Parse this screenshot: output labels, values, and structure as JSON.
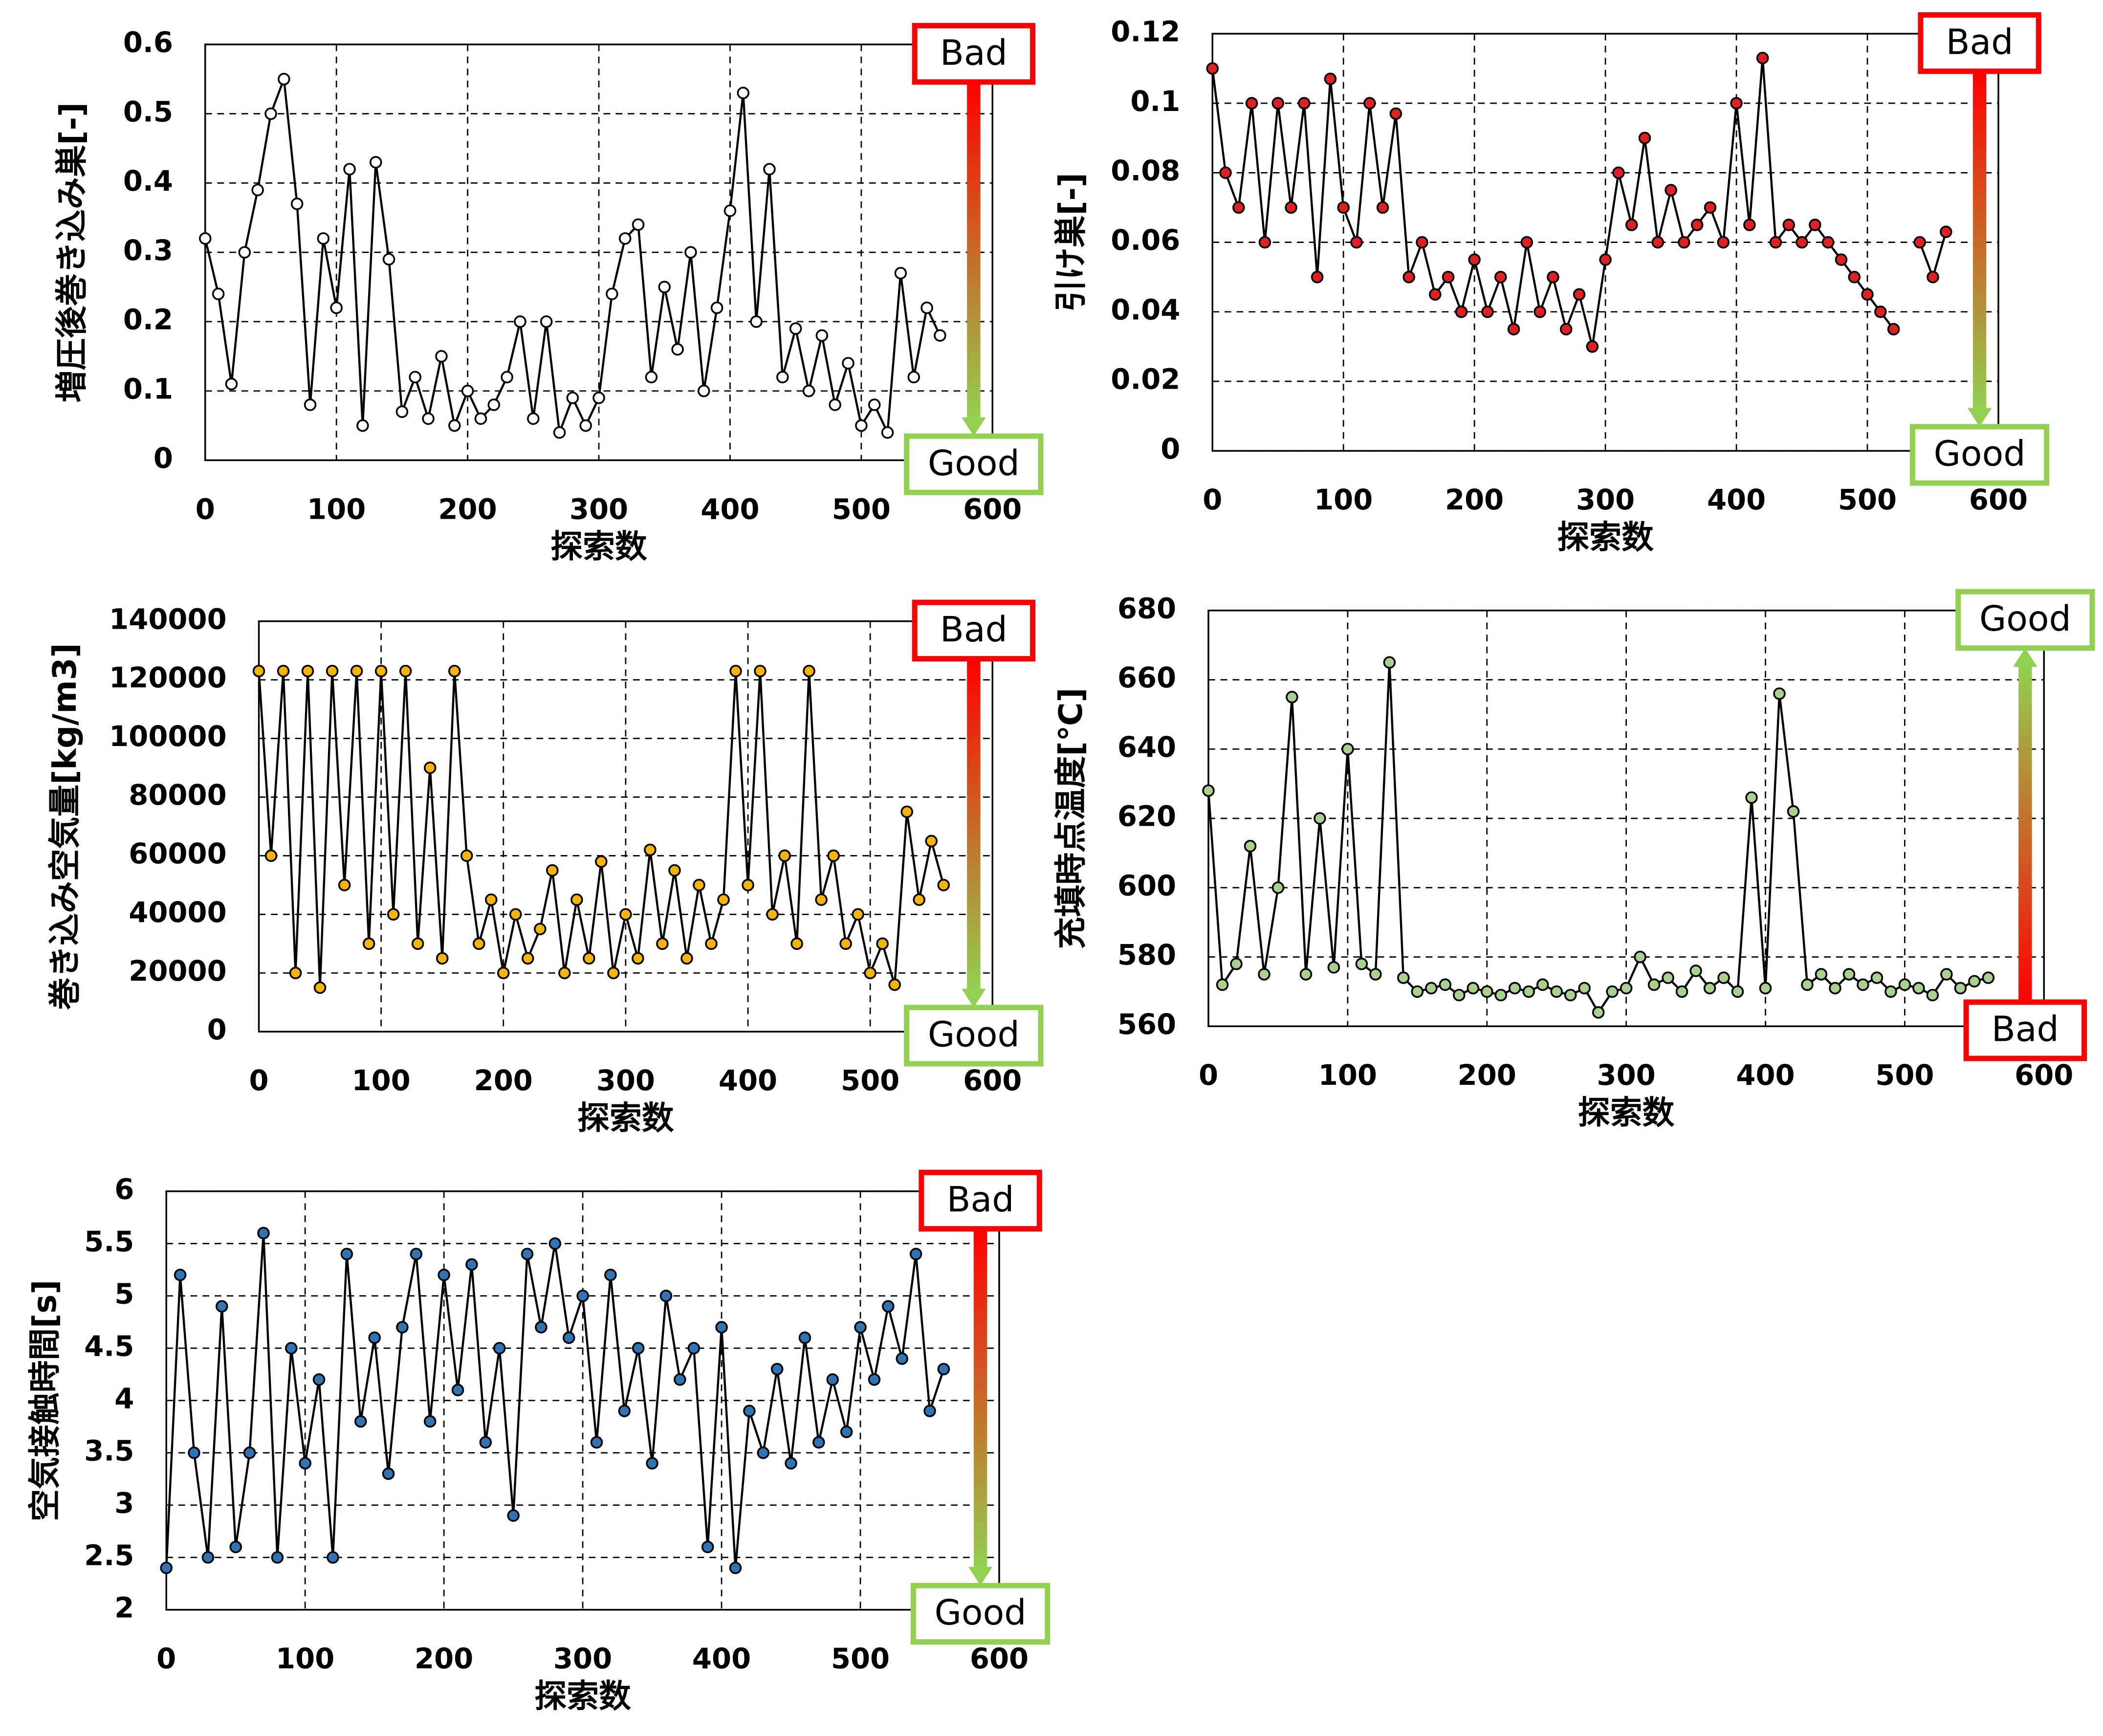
{
  "chart_data": [
    {
      "type": "line",
      "ylabel": "増圧後巻き込み巣[-]",
      "xlabel": "探索数",
      "x": [
        0,
        10,
        20,
        30,
        40,
        50,
        60,
        70,
        80,
        90,
        100,
        110,
        120,
        130,
        140,
        150,
        160,
        170,
        180,
        190,
        200,
        210,
        220,
        230,
        240,
        250,
        260,
        270,
        280,
        290,
        300,
        310,
        320,
        330,
        340,
        350,
        360,
        370,
        380,
        390,
        400,
        410,
        420,
        430,
        440,
        450,
        460,
        470,
        480,
        490,
        500,
        510,
        520,
        530,
        540,
        550,
        560
      ],
      "series": [
        {
          "color": "#ffffff",
          "values": [
            0.32,
            0.24,
            0.11,
            0.3,
            0.39,
            0.5,
            0.55,
            0.37,
            0.08,
            0.32,
            0.22,
            0.42,
            0.05,
            0.43,
            0.29,
            0.07,
            0.12,
            0.06,
            0.15,
            0.05,
            0.1,
            0.06,
            0.08,
            0.12,
            0.2,
            0.06,
            0.2,
            0.04,
            0.09,
            0.05,
            0.09,
            0.24,
            0.32,
            0.34,
            0.12,
            0.25,
            0.16,
            0.3,
            0.1,
            0.22,
            0.36,
            0.53,
            0.2,
            0.42,
            0.12,
            0.19,
            0.1,
            0.18,
            0.08,
            0.14,
            0.05,
            0.08,
            0.04,
            0.27,
            0.12,
            0.22,
            0.18
          ]
        }
      ],
      "xlim": [
        0,
        600
      ],
      "xticks": [
        0,
        100,
        200,
        300,
        400,
        500,
        600
      ],
      "ylim": [
        0,
        0.6
      ],
      "yticks": [
        0,
        0.1,
        0.2,
        0.3,
        0.4,
        0.5,
        0.6
      ],
      "grid": true,
      "arrow": {
        "from": "Bad",
        "to": "Good",
        "direction": "down",
        "from_color": "#ff0000",
        "to_color": "#92d050"
      }
    },
    {
      "type": "line",
      "ylabel": "引け巣[-]",
      "xlabel": "探索数",
      "x": [
        0,
        10,
        20,
        30,
        40,
        50,
        60,
        70,
        80,
        90,
        100,
        110,
        120,
        130,
        140,
        150,
        160,
        170,
        180,
        190,
        200,
        210,
        220,
        230,
        240,
        250,
        260,
        270,
        280,
        290,
        300,
        310,
        320,
        330,
        340,
        350,
        360,
        370,
        380,
        390,
        400,
        410,
        420,
        430,
        440,
        450,
        460,
        470,
        480,
        490,
        500,
        510,
        520,
        530,
        540,
        550,
        560
      ],
      "series": [
        {
          "color": "#e02020",
          "values": [
            0.11,
            0.08,
            0.07,
            0.1,
            0.06,
            0.1,
            0.07,
            0.1,
            0.05,
            0.107,
            0.07,
            0.06,
            0.1,
            0.07,
            0.097,
            0.05,
            0.06,
            0.045,
            0.05,
            0.04,
            0.055,
            0.04,
            0.05,
            0.035,
            0.06,
            0.04,
            0.05,
            0.035,
            0.045,
            0.03,
            0.055,
            0.08,
            0.065,
            0.09,
            0.06,
            0.075,
            0.06,
            0.065,
            0.07,
            0.06,
            0.1,
            0.065,
            0.113,
            0.06,
            0.065,
            0.06,
            0.065,
            0.06,
            0.055,
            0.05,
            0.045,
            0.04,
            0.035,
            null,
            0.06,
            0.05,
            0.063
          ]
        }
      ],
      "xlim": [
        0,
        600
      ],
      "xticks": [
        0,
        100,
        200,
        300,
        400,
        500,
        600
      ],
      "ylim": [
        0,
        0.12
      ],
      "yticks": [
        0,
        0.02,
        0.04,
        0.06,
        0.08,
        0.1,
        0.12
      ],
      "grid": true,
      "arrow": {
        "from": "Bad",
        "to": "Good",
        "direction": "down",
        "from_color": "#ff0000",
        "to_color": "#92d050"
      }
    },
    {
      "type": "line",
      "ylabel": "巻き込み空気量[kg/m3]",
      "xlabel": "探索数",
      "x": [
        0,
        10,
        20,
        30,
        40,
        50,
        60,
        70,
        80,
        90,
        100,
        110,
        120,
        130,
        140,
        150,
        160,
        170,
        180,
        190,
        200,
        210,
        220,
        230,
        240,
        250,
        260,
        270,
        280,
        290,
        300,
        310,
        320,
        330,
        340,
        350,
        360,
        370,
        380,
        390,
        400,
        410,
        420,
        430,
        440,
        450,
        460,
        470,
        480,
        490,
        500,
        510,
        520,
        530,
        540,
        550,
        560
      ],
      "series": [
        {
          "color": "#f5b400",
          "values": [
            123000,
            60000,
            123000,
            20000,
            123000,
            15000,
            123000,
            50000,
            123000,
            30000,
            123000,
            40000,
            123000,
            30000,
            90000,
            25000,
            123000,
            60000,
            30000,
            45000,
            20000,
            40000,
            25000,
            35000,
            55000,
            20000,
            45000,
            25000,
            58000,
            20000,
            40000,
            25000,
            62000,
            30000,
            55000,
            25000,
            50000,
            30000,
            45000,
            123000,
            50000,
            123000,
            40000,
            60000,
            30000,
            123000,
            45000,
            60000,
            30000,
            40000,
            20000,
            30000,
            16000,
            75000,
            45000,
            65000,
            50000
          ]
        }
      ],
      "xlim": [
        0,
        600
      ],
      "xticks": [
        0,
        100,
        200,
        300,
        400,
        500,
        600
      ],
      "ylim": [
        0,
        140000
      ],
      "yticks": [
        0,
        20000,
        40000,
        60000,
        80000,
        100000,
        120000,
        140000
      ],
      "grid": true,
      "arrow": {
        "from": "Bad",
        "to": "Good",
        "direction": "down",
        "from_color": "#ff0000",
        "to_color": "#92d050"
      }
    },
    {
      "type": "line",
      "ylabel": "充填時点温度[℃]",
      "xlabel": "探索数",
      "x": [
        0,
        10,
        20,
        30,
        40,
        50,
        60,
        70,
        80,
        90,
        100,
        110,
        120,
        130,
        140,
        150,
        160,
        170,
        180,
        190,
        200,
        210,
        220,
        230,
        240,
        250,
        260,
        270,
        280,
        290,
        300,
        310,
        320,
        330,
        340,
        350,
        360,
        370,
        380,
        390,
        400,
        410,
        420,
        430,
        440,
        450,
        460,
        470,
        480,
        490,
        500,
        510,
        520,
        530,
        540,
        550,
        560
      ],
      "series": [
        {
          "color": "#a9d18e",
          "values": [
            628,
            572,
            578,
            612,
            575,
            600,
            655,
            575,
            620,
            577,
            640,
            578,
            575,
            665,
            574,
            570,
            571,
            572,
            569,
            571,
            570,
            569,
            571,
            570,
            572,
            570,
            569,
            571,
            564,
            570,
            571,
            580,
            572,
            574,
            570,
            576,
            571,
            574,
            570,
            626,
            571,
            656,
            622,
            572,
            575,
            571,
            575,
            572,
            574,
            570,
            572,
            571,
            569,
            575,
            571,
            573,
            574
          ]
        }
      ],
      "xlim": [
        0,
        600
      ],
      "xticks": [
        0,
        100,
        200,
        300,
        400,
        500,
        600
      ],
      "ylim": [
        560,
        680
      ],
      "yticks": [
        560,
        580,
        600,
        620,
        640,
        660,
        680
      ],
      "grid": true,
      "arrow": {
        "from": "Bad",
        "to": "Good",
        "direction": "up",
        "from_color": "#ff0000",
        "to_color": "#92d050"
      }
    },
    {
      "type": "line",
      "ylabel": "空気接触時間[s]",
      "xlabel": "探索数",
      "x": [
        0,
        10,
        20,
        30,
        40,
        50,
        60,
        70,
        80,
        90,
        100,
        110,
        120,
        130,
        140,
        150,
        160,
        170,
        180,
        190,
        200,
        210,
        220,
        230,
        240,
        250,
        260,
        270,
        280,
        290,
        300,
        310,
        320,
        330,
        340,
        350,
        360,
        370,
        380,
        390,
        400,
        410,
        420,
        430,
        440,
        450,
        460,
        470,
        480,
        490,
        500,
        510,
        520,
        530,
        540,
        550,
        560
      ],
      "series": [
        {
          "color": "#2e75b6",
          "values": [
            2.4,
            5.2,
            3.5,
            2.5,
            4.9,
            2.6,
            3.5,
            5.6,
            2.5,
            4.5,
            3.4,
            4.2,
            2.5,
            5.4,
            3.8,
            4.6,
            3.3,
            4.7,
            5.4,
            3.8,
            5.2,
            4.1,
            5.3,
            3.6,
            4.5,
            2.9,
            5.4,
            4.7,
            5.5,
            4.6,
            5.0,
            3.6,
            5.2,
            3.9,
            4.5,
            3.4,
            5.0,
            4.2,
            4.5,
            2.6,
            4.7,
            2.4,
            3.9,
            3.5,
            4.3,
            3.4,
            4.6,
            3.6,
            4.2,
            3.7,
            4.7,
            4.2,
            4.9,
            4.4,
            5.4,
            3.9,
            4.3
          ]
        }
      ],
      "xlim": [
        0,
        600
      ],
      "xticks": [
        0,
        100,
        200,
        300,
        400,
        500,
        600
      ],
      "ylim": [
        2,
        6
      ],
      "yticks": [
        2,
        2.5,
        3,
        3.5,
        4,
        4.5,
        5,
        5.5,
        6
      ],
      "grid": true,
      "arrow": {
        "from": "Bad",
        "to": "Good",
        "direction": "down",
        "from_color": "#ff0000",
        "to_color": "#92d050"
      }
    }
  ]
}
